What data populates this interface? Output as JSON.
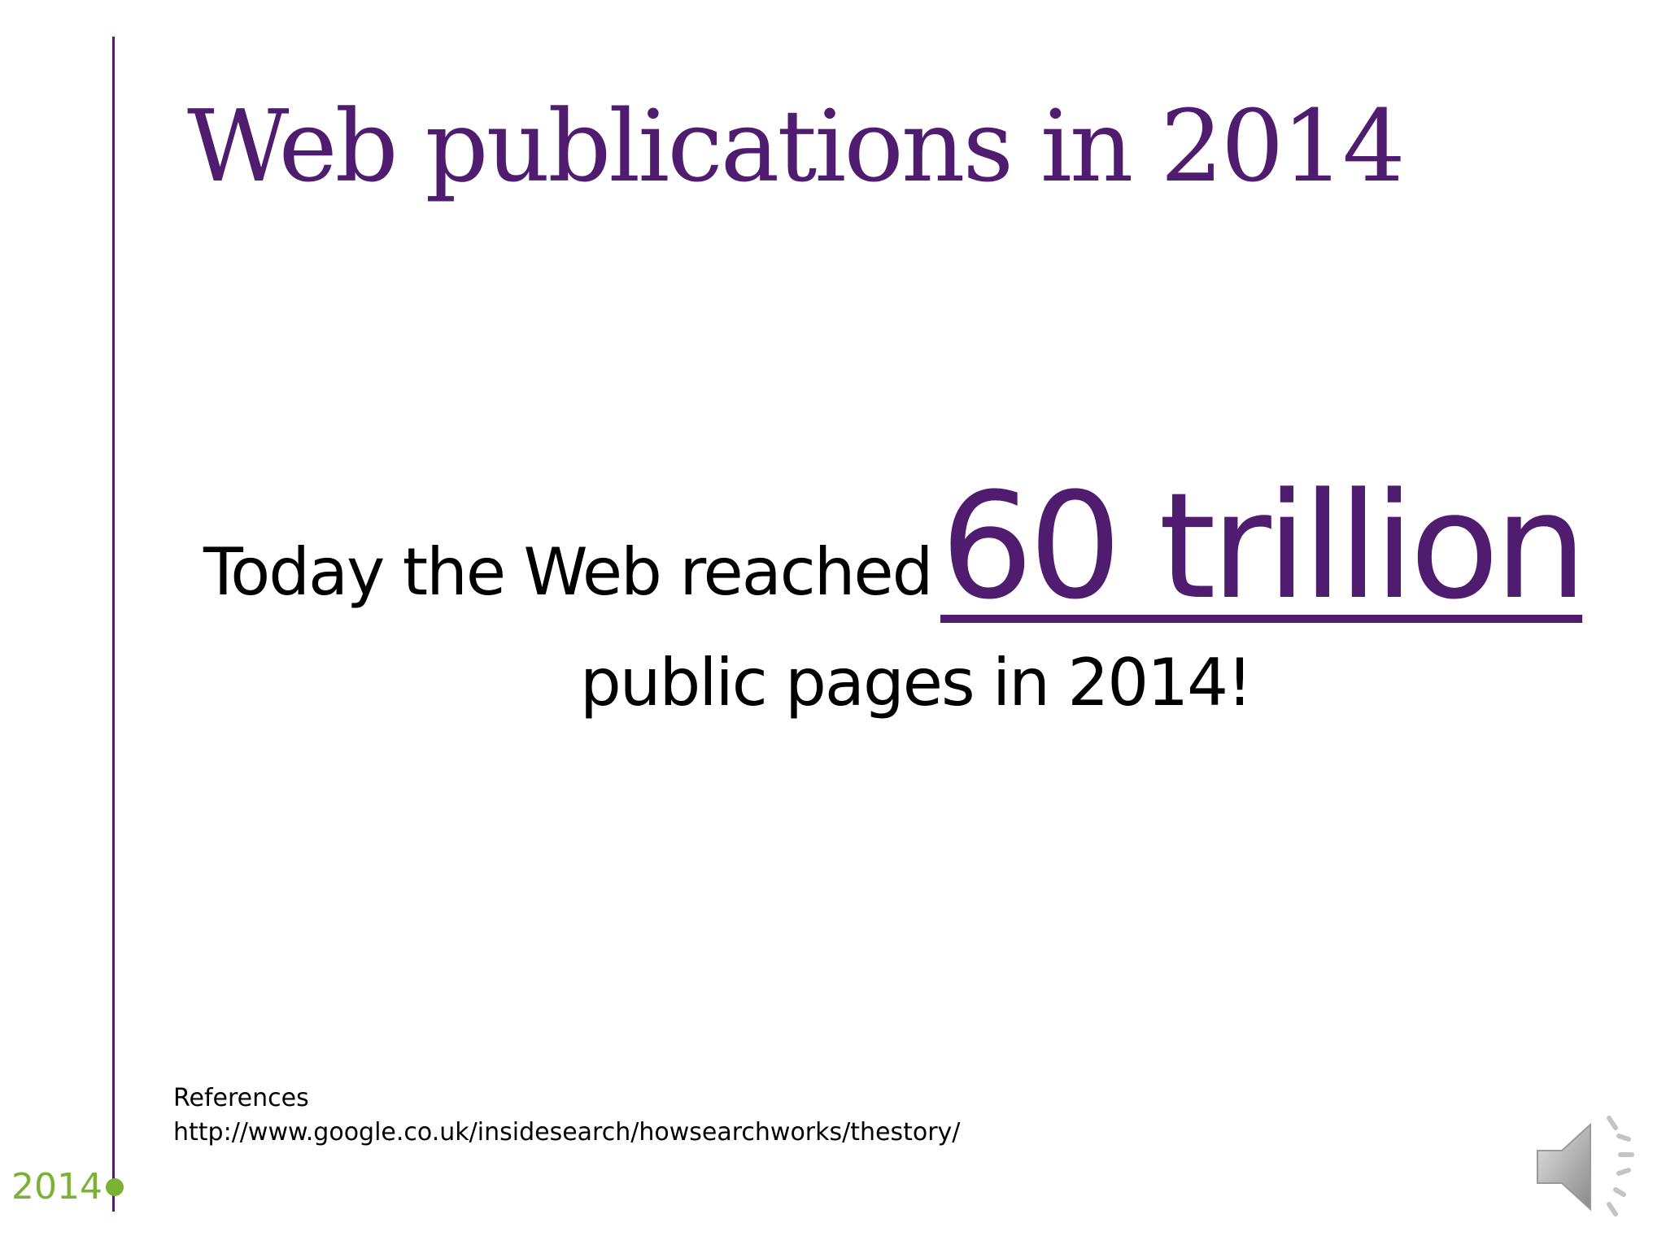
{
  "slide": {
    "title": "Web publications in 2014",
    "statement": {
      "lead": "Today the Web reached",
      "figure": "60 trillion",
      "tail": "public pages in 2014!"
    },
    "references": {
      "heading": "References",
      "url": "http://www.google.co.uk/insidesearch/howsearchworks/thestory/"
    },
    "timeline": {
      "year": "2014"
    },
    "colors": {
      "accent_purple": "#4f1c6f",
      "timeline_green": "#7ab234",
      "text": "#000000",
      "background": "#ffffff"
    },
    "icons": {
      "audio": "speaker-icon"
    }
  }
}
